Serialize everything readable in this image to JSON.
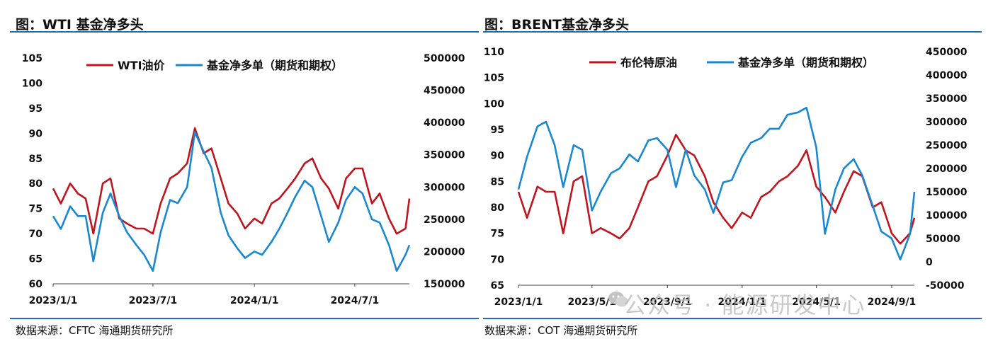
{
  "watermark": {
    "text": "公众号 · 能源研发中心",
    "icon": "wechat-icon"
  },
  "colors": {
    "red": "#c0141e",
    "blue": "#1a88d1",
    "rule": "#1f6fb2"
  },
  "chart_data": [
    {
      "type": "line",
      "title": "图：WTI 基金净多头",
      "source": "数据来源：CFTC   海通期货研究所",
      "legend_placement": "top",
      "x_ticks": [
        "2023/1/1",
        "2023/7/1",
        "2024/1/1",
        "2024/7/1"
      ],
      "x_range": [
        "2023-01-01",
        "2024-10-08"
      ],
      "y_left": {
        "range": [
          60,
          105
        ],
        "ticks": [
          "60",
          "65",
          "70",
          "75",
          "80",
          "85",
          "90",
          "95",
          "100",
          "105"
        ]
      },
      "y_right": {
        "range": [
          150000,
          500000
        ],
        "ticks": [
          "150000",
          "200000",
          "250000",
          "300000",
          "350000",
          "400000",
          "450000",
          "500000"
        ]
      },
      "series": [
        {
          "name": "WTI油价",
          "axis": "left",
          "color": "#c0141e",
          "x": [
            "2023-01-01",
            "2023-01-15",
            "2023-02-01",
            "2023-02-15",
            "2023-03-01",
            "2023-03-15",
            "2023-04-01",
            "2023-04-15",
            "2023-05-01",
            "2023-05-15",
            "2023-06-01",
            "2023-06-15",
            "2023-07-01",
            "2023-07-15",
            "2023-08-01",
            "2023-08-15",
            "2023-09-01",
            "2023-09-15",
            "2023-10-01",
            "2023-10-15",
            "2023-11-01",
            "2023-11-15",
            "2023-12-01",
            "2023-12-15",
            "2024-01-01",
            "2024-01-15",
            "2024-02-01",
            "2024-02-15",
            "2024-03-01",
            "2024-03-15",
            "2024-04-01",
            "2024-04-15",
            "2024-05-01",
            "2024-05-15",
            "2024-06-01",
            "2024-06-15",
            "2024-07-01",
            "2024-07-15",
            "2024-08-01",
            "2024-08-15",
            "2024-09-01",
            "2024-09-15",
            "2024-10-01",
            "2024-10-08"
          ],
          "values": [
            79,
            76,
            80,
            78,
            77,
            70,
            80,
            81,
            73,
            72,
            71,
            71,
            70,
            76,
            81,
            82,
            84,
            91,
            86,
            87,
            81,
            76,
            74,
            71,
            73,
            72,
            76,
            77,
            79,
            81,
            84,
            85,
            81,
            79,
            75,
            81,
            83,
            83,
            76,
            78,
            73,
            70,
            71,
            77
          ]
        },
        {
          "name": "基金净多单（期货和期权）",
          "axis": "right",
          "color": "#1a88d1",
          "x": [
            "2023-01-01",
            "2023-01-15",
            "2023-02-01",
            "2023-02-15",
            "2023-03-01",
            "2023-03-15",
            "2023-04-01",
            "2023-04-15",
            "2023-05-01",
            "2023-05-15",
            "2023-06-01",
            "2023-06-15",
            "2023-07-01",
            "2023-07-15",
            "2023-08-01",
            "2023-08-15",
            "2023-09-01",
            "2023-09-15",
            "2023-10-01",
            "2023-10-15",
            "2023-11-01",
            "2023-11-15",
            "2023-12-01",
            "2023-12-15",
            "2024-01-01",
            "2024-01-15",
            "2024-02-01",
            "2024-02-15",
            "2024-03-01",
            "2024-03-15",
            "2024-04-01",
            "2024-04-15",
            "2024-05-01",
            "2024-05-15",
            "2024-06-01",
            "2024-06-15",
            "2024-07-01",
            "2024-07-15",
            "2024-08-01",
            "2024-08-15",
            "2024-09-01",
            "2024-09-15",
            "2024-10-01",
            "2024-10-08"
          ],
          "values": [
            255000,
            235000,
            270000,
            255000,
            255000,
            185000,
            260000,
            290000,
            255000,
            230000,
            210000,
            195000,
            170000,
            230000,
            280000,
            275000,
            300000,
            385000,
            355000,
            330000,
            260000,
            225000,
            205000,
            190000,
            200000,
            195000,
            215000,
            235000,
            260000,
            285000,
            310000,
            300000,
            255000,
            215000,
            245000,
            280000,
            300000,
            290000,
            250000,
            245000,
            210000,
            170000,
            195000,
            210000
          ]
        }
      ]
    },
    {
      "type": "line",
      "title": "图：BRENT基金净多头",
      "source": "数据来源：COT   海通期货研究所",
      "legend_placement": "top",
      "x_ticks": [
        "2023/1/1",
        "2023/5/1",
        "2023/9/1",
        "2024/1/1",
        "2024/5/1",
        "2024/9/1"
      ],
      "x_range": [
        "2023-01-01",
        "2024-10-08"
      ],
      "y_left": {
        "range": [
          65,
          110
        ],
        "ticks": [
          "65",
          "70",
          "75",
          "80",
          "85",
          "90",
          "95",
          "100",
          "105",
          "110"
        ]
      },
      "y_right": {
        "range": [
          -50000,
          450000
        ],
        "ticks": [
          "-50000",
          "0",
          "50000",
          "100000",
          "150000",
          "200000",
          "250000",
          "300000",
          "350000",
          "400000",
          "450000"
        ]
      },
      "series": [
        {
          "name": "布伦特原油",
          "axis": "left",
          "color": "#c0141e",
          "x": [
            "2023-01-01",
            "2023-01-15",
            "2023-02-01",
            "2023-02-15",
            "2023-03-01",
            "2023-03-15",
            "2023-04-01",
            "2023-04-15",
            "2023-05-01",
            "2023-05-15",
            "2023-06-01",
            "2023-06-15",
            "2023-07-01",
            "2023-07-15",
            "2023-08-01",
            "2023-08-15",
            "2023-09-01",
            "2023-09-15",
            "2023-10-01",
            "2023-10-15",
            "2023-11-01",
            "2023-11-15",
            "2023-12-01",
            "2023-12-15",
            "2024-01-01",
            "2024-01-15",
            "2024-02-01",
            "2024-02-15",
            "2024-03-01",
            "2024-03-15",
            "2024-04-01",
            "2024-04-15",
            "2024-05-01",
            "2024-05-15",
            "2024-06-01",
            "2024-06-15",
            "2024-07-01",
            "2024-07-15",
            "2024-08-01",
            "2024-08-15",
            "2024-09-01",
            "2024-09-15",
            "2024-10-01",
            "2024-10-08"
          ],
          "values": [
            83,
            78,
            84,
            83,
            83,
            75,
            85,
            86,
            75,
            76,
            75,
            74,
            76,
            80,
            85,
            86,
            90,
            94,
            91,
            90,
            86,
            81,
            78,
            76,
            79,
            78,
            82,
            83,
            85,
            86,
            88,
            91,
            84,
            82,
            79,
            83,
            87,
            86,
            80,
            81,
            75,
            73,
            75,
            78
          ]
        },
        {
          "name": "基金净多单（期货和期权）",
          "axis": "right",
          "color": "#1a88d1",
          "x": [
            "2023-01-01",
            "2023-01-15",
            "2023-02-01",
            "2023-02-15",
            "2023-03-01",
            "2023-03-15",
            "2023-04-01",
            "2023-04-15",
            "2023-05-01",
            "2023-05-15",
            "2023-06-01",
            "2023-06-15",
            "2023-07-01",
            "2023-07-15",
            "2023-08-01",
            "2023-08-15",
            "2023-09-01",
            "2023-09-15",
            "2023-10-01",
            "2023-10-15",
            "2023-11-01",
            "2023-11-15",
            "2023-12-01",
            "2023-12-15",
            "2024-01-01",
            "2024-01-15",
            "2024-02-01",
            "2024-02-15",
            "2024-03-01",
            "2024-03-15",
            "2024-04-01",
            "2024-04-15",
            "2024-05-01",
            "2024-05-15",
            "2024-06-01",
            "2024-06-15",
            "2024-07-01",
            "2024-07-15",
            "2024-08-01",
            "2024-08-15",
            "2024-09-01",
            "2024-09-15",
            "2024-10-01",
            "2024-10-08"
          ],
          "values": [
            155000,
            225000,
            290000,
            300000,
            250000,
            160000,
            250000,
            240000,
            110000,
            150000,
            190000,
            200000,
            230000,
            215000,
            260000,
            265000,
            240000,
            160000,
            240000,
            185000,
            155000,
            105000,
            170000,
            175000,
            225000,
            255000,
            265000,
            285000,
            285000,
            315000,
            320000,
            330000,
            245000,
            60000,
            155000,
            200000,
            220000,
            185000,
            120000,
            65000,
            50000,
            5000,
            60000,
            150000
          ]
        }
      ]
    }
  ]
}
